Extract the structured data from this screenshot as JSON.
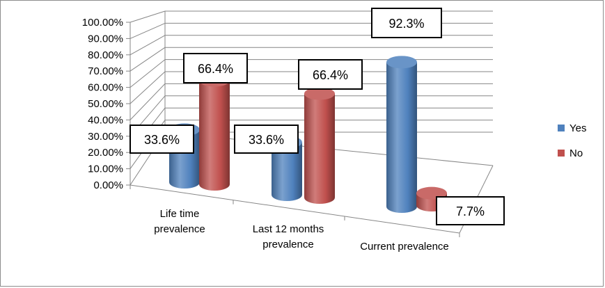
{
  "chart_data": {
    "type": "bar",
    "style": "3d-cylinder",
    "categories": [
      "Life time prevalence",
      "Last 12 months prevalence",
      "Current prevalence"
    ],
    "category_lines": [
      [
        "Life time",
        "prevalence"
      ],
      [
        "Last 12 months",
        "prevalence"
      ],
      [
        "Current prevalence"
      ]
    ],
    "series": [
      {
        "name": "Yes",
        "color": "#4f81bd",
        "values": [
          33.6,
          33.6,
          92.3
        ],
        "labels": [
          "33.6%",
          "33.6%",
          "92.3%"
        ]
      },
      {
        "name": "No",
        "color": "#c0504d",
        "values": [
          66.4,
          66.4,
          7.7
        ],
        "labels": [
          "66.4%",
          "66.4%",
          "7.7%"
        ]
      }
    ],
    "yticks": [
      "0.00%",
      "10.00%",
      "20.00%",
      "30.00%",
      "40.00%",
      "50.00%",
      "60.00%",
      "70.00%",
      "80.00%",
      "90.00%",
      "100.00%"
    ],
    "ylim": [
      0,
      100
    ],
    "grid": true,
    "legend_position": "right"
  }
}
